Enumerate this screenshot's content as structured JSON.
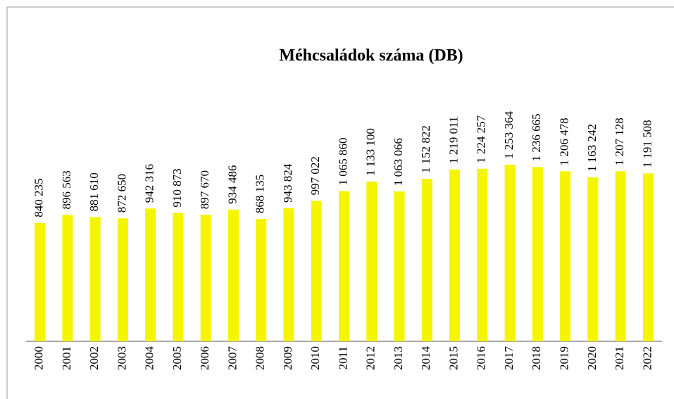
{
  "chart_data": {
    "type": "bar",
    "title": "Méhcsaládok száma  (DB)",
    "categories": [
      "2000",
      "2001",
      "2002",
      "2003",
      "2004",
      "2005",
      "2006",
      "2007",
      "2008",
      "2009",
      "2010",
      "2011",
      "2012",
      "2013",
      "2014",
      "2015",
      "2016",
      "2017",
      "2018",
      "2019",
      "2020",
      "2021",
      "2022"
    ],
    "values": [
      840235,
      896563,
      881610,
      872650,
      942316,
      910873,
      897670,
      934486,
      868135,
      943824,
      997022,
      1065860,
      1133100,
      1063066,
      1152822,
      1219011,
      1224257,
      1253364,
      1236665,
      1206478,
      1163242,
      1207128,
      1191508
    ],
    "value_labels": [
      "840 235",
      "896 563",
      "881 610",
      "872 650",
      "942 316",
      "910 873",
      "897 670",
      "934 486",
      "868 135",
      "943 824",
      "997 022",
      "1 065 860",
      "1 133 100",
      "1 063 066",
      "1 152 822",
      "1 219 011",
      "1 224 257",
      "1 253 364",
      "1 236 665",
      "1 206 478",
      "1 163 242",
      "1 207 128",
      "1 191 508"
    ],
    "color": "#f5f500"
  }
}
